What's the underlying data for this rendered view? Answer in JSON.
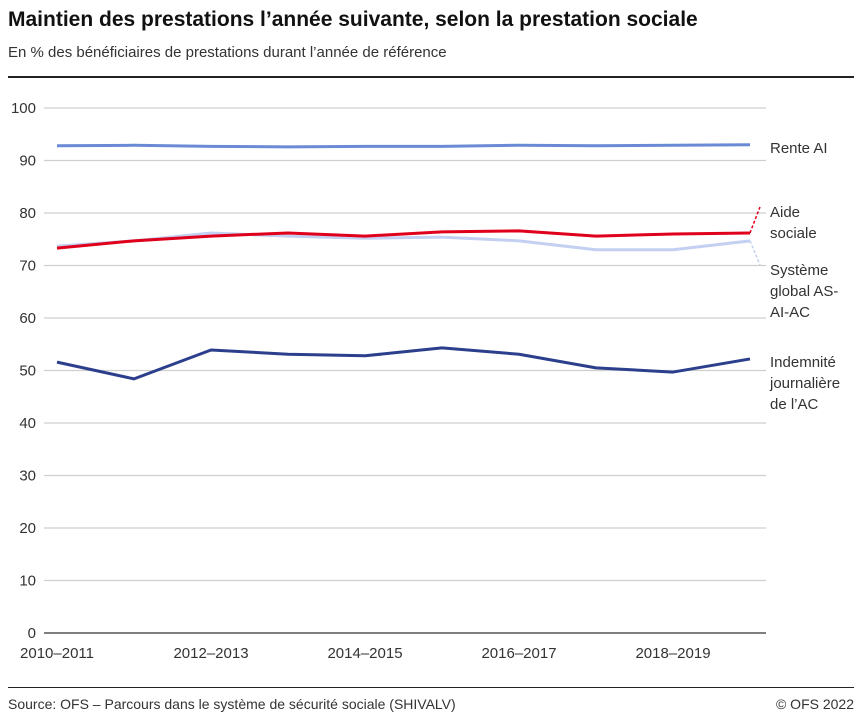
{
  "title": "Maintien des prestations l’année suivante, selon la prestation sociale",
  "subtitle": "En % des bénéficiaires de prestations durant l’année de référence",
  "source": "Source: OFS – Parcours dans le système de sécurité sociale (SHIVALV)",
  "copyright": "© OFS 2022",
  "chart_data": {
    "type": "line",
    "title": "Maintien des prestations l’année suivante, selon la prestation sociale",
    "ylabel": "",
    "xlabel": "",
    "ylim": [
      0,
      100
    ],
    "yticks": [
      0,
      10,
      20,
      30,
      40,
      50,
      60,
      70,
      80,
      90,
      100
    ],
    "grid": true,
    "legend": "right, inline labels",
    "categories": [
      "2010–2011",
      "2011–2012",
      "2012–2013",
      "2013–2014",
      "2014–2015",
      "2015–2016",
      "2016–2017",
      "2017–2018",
      "2018–2019",
      "2019–2020"
    ],
    "xtick_labels": [
      "2010–2011",
      "2012–2013",
      "2014–2015",
      "2016–2017",
      "2018–2019"
    ],
    "series": [
      {
        "name": "Rente AI",
        "label_lines": [
          "Rente AI"
        ],
        "color": "#6b8ad6",
        "values": [
          92.8,
          92.9,
          92.7,
          92.6,
          92.7,
          92.7,
          92.9,
          92.8,
          92.9,
          93.0
        ]
      },
      {
        "name": "Aide sociale",
        "label_lines": [
          "Aide",
          "sociale"
        ],
        "color": "#e0001b",
        "values": [
          73.3,
          74.7,
          75.6,
          76.2,
          75.6,
          76.4,
          76.6,
          75.6,
          76.0,
          76.2
        ]
      },
      {
        "name": "Système global AS-AI-AC",
        "label_lines": [
          "Système",
          "global AS-",
          "AI-AC"
        ],
        "color": "#c3d0f2",
        "values": [
          73.7,
          74.7,
          76.2,
          75.6,
          75.2,
          75.4,
          74.7,
          73.0,
          73.0,
          74.7
        ]
      },
      {
        "name": "Indemnité journalière de l’AC",
        "label_lines": [
          "Indemnité",
          "journalière",
          "de l’AC"
        ],
        "color": "#2b3f8c",
        "values": [
          51.6,
          48.4,
          53.9,
          53.1,
          52.8,
          54.3,
          53.1,
          50.5,
          49.7,
          52.2
        ]
      }
    ]
  }
}
